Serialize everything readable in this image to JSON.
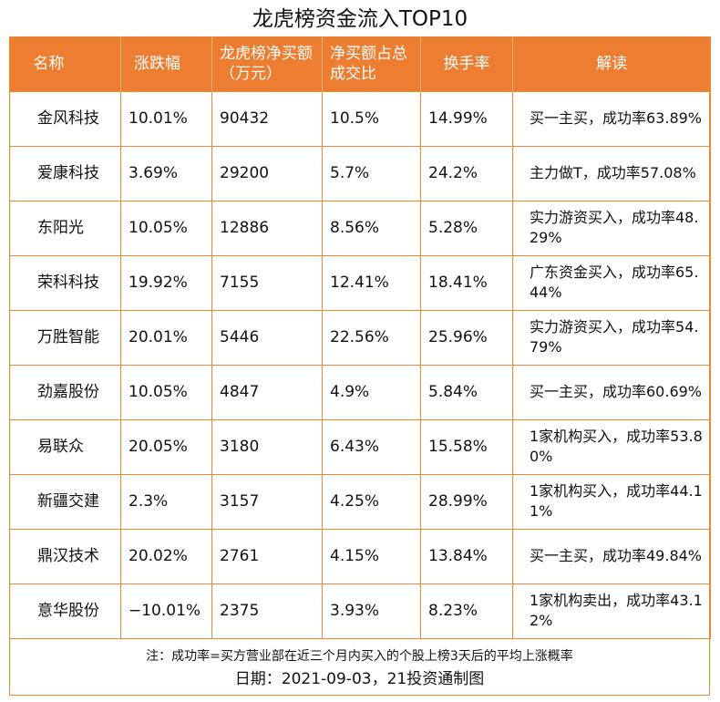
{
  "title": "龙虎榜资金流入TOP10",
  "headers": [
    "名称",
    "涨跌幅",
    "龙虎榜净买额（万元）",
    "净买额占总成交比",
    "换手率",
    "解读"
  ],
  "rows": [
    {
      "name": "金风科技",
      "change": "10.01%",
      "net_buy": "90432",
      "ratio": "10.5%",
      "turnover": "14.99%",
      "note": "买一主买，成功率63.89%"
    },
    {
      "name": "爱康科技",
      "change": "3.69%",
      "net_buy": "29200",
      "ratio": "5.7%",
      "turnover": "24.2%",
      "note": "主力做T，成功率57.08%"
    },
    {
      "name": "东阳光",
      "change": "10.05%",
      "net_buy": "12886",
      "ratio": "8.56%",
      "turnover": "5.28%",
      "note": "实力游资买入，成功率48.29%"
    },
    {
      "name": "荣科科技",
      "change": "19.92%",
      "net_buy": "7155",
      "ratio": "12.41%",
      "turnover": "18.41%",
      "note": "广东资金买入，成功率65.44%"
    },
    {
      "name": "万胜智能",
      "change": "20.01%",
      "net_buy": "5446",
      "ratio": "22.56%",
      "turnover": "25.96%",
      "note": "实力游资买入，成功率54.79%"
    },
    {
      "name": "劲嘉股份",
      "change": "10.05%",
      "net_buy": "4847",
      "ratio": "4.9%",
      "turnover": "5.84%",
      "note": "买一主买，成功率60.69%"
    },
    {
      "name": "易联众",
      "change": "20.05%",
      "net_buy": "3180",
      "ratio": "6.43%",
      "turnover": "15.58%",
      "note": "1家机构买入，成功率53.80%"
    },
    {
      "name": "新疆交建",
      "change": "2.3%",
      "net_buy": "3157",
      "ratio": "4.25%",
      "turnover": "28.99%",
      "note": "1家机构买入，成功率44.11%"
    },
    {
      "name": "鼎汉技术",
      "change": "20.02%",
      "net_buy": "2761",
      "ratio": "4.15%",
      "turnover": "13.84%",
      "note": "买一主买，成功率49.84%"
    },
    {
      "name": "意华股份",
      "change": "−10.01%",
      "net_buy": "2375",
      "ratio": "3.93%",
      "turnover": "8.23%",
      "note": "1家机构卖出，成功率43.12%"
    }
  ],
  "footnote": "注：成功率=买方营业部在近三个月内买入的个股上榜3天后的平均上涨概率",
  "footer_date": "日期：2021-09-03，21投资通制图"
}
